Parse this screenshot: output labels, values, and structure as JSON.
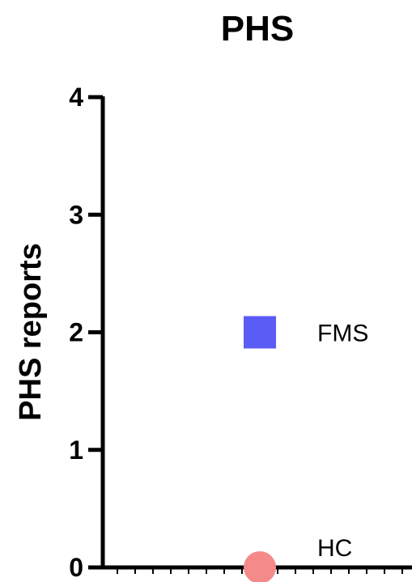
{
  "chart_data": {
    "type": "scatter",
    "title": "PHS",
    "xlabel": "",
    "ylabel": "PHS reports",
    "ylim": [
      0,
      4
    ],
    "yticks": [
      "0",
      "1",
      "2",
      "3",
      "4"
    ],
    "grid": false,
    "points": [
      {
        "label": "FMS",
        "y": 2,
        "marker": "square",
        "color": "#5b5bf5"
      },
      {
        "label": "HC",
        "y": 0,
        "marker": "circle",
        "color": "#f58a8a"
      }
    ]
  }
}
